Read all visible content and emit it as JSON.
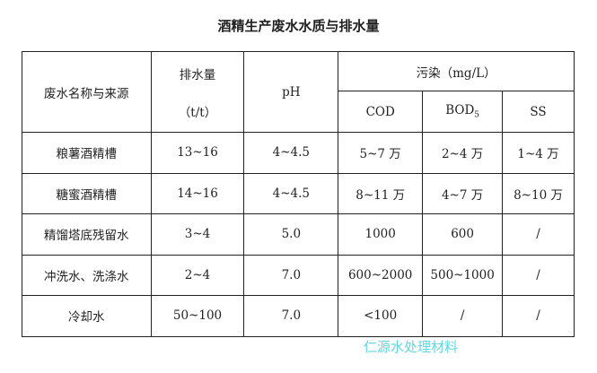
{
  "title": "酒精生产废水水质与排水量",
  "header": {
    "name": "废水名称与来源",
    "flow": "排水量",
    "flow_unit": "（t/t）",
    "ph": "pH",
    "pollution": "污染（mg/L）",
    "cod": "COD",
    "bod": "BOD",
    "bod_sub": "5",
    "ss": "SS"
  },
  "rows": [
    [
      "粮薯酒精槽",
      "13~16",
      "4~4.5",
      "5~7 万",
      "2~4 万",
      "1~4 万"
    ],
    [
      "糖蜜酒精槽",
      "14~16",
      "4~4.5",
      "8~11 万",
      "4~7 万",
      "8~10 万"
    ],
    [
      "精馏塔底残留水",
      "3~4",
      "5.0",
      "1000",
      "600",
      "/"
    ],
    [
      "冲洗水、洗涤水",
      "2~4",
      "7.0",
      "600~2000",
      "500~1000",
      "/"
    ],
    [
      "冷却水",
      "50~100",
      "7.0",
      "<100",
      "/",
      "/"
    ]
  ],
  "watermark": "仁源水处理材料"
}
